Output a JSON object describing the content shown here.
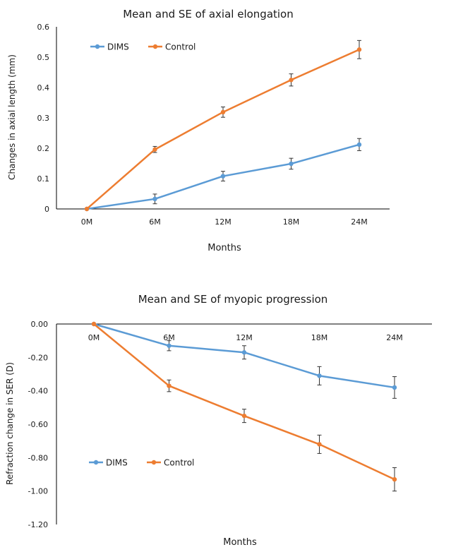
{
  "colors": {
    "dims": "#5B9BD5",
    "control": "#ED7D31",
    "axis": "#000000",
    "text": "#1a1a1a",
    "error": "#333333"
  },
  "chart_data": [
    {
      "type": "line",
      "title": "Mean and SE of axial elongation",
      "xlabel": "Months",
      "ylabel": "Changes in axial length (mm)",
      "categories": [
        "0M",
        "6M",
        "12M",
        "18M",
        "24M"
      ],
      "ylim": [
        0,
        0.6
      ],
      "yticks": [
        0,
        0.1,
        0.2,
        0.3,
        0.4,
        0.5,
        0.6
      ],
      "ytick_labels": [
        "0",
        "0.1",
        "0.2",
        "0.3",
        "0.4",
        "0.5",
        "0.6"
      ],
      "legend_position": "top-left",
      "series": [
        {
          "name": "DIMS",
          "color_key": "dims",
          "values": [
            0,
            0.033,
            0.108,
            0.149,
            0.212
          ],
          "errors": [
            0,
            0.016,
            0.016,
            0.018,
            0.02
          ]
        },
        {
          "name": "Control",
          "color_key": "control",
          "values": [
            0,
            0.196,
            0.319,
            0.425,
            0.525
          ],
          "errors": [
            0,
            0.01,
            0.017,
            0.02,
            0.03
          ]
        }
      ]
    },
    {
      "type": "line",
      "title": "Mean and SE of myopic progression",
      "xlabel": "Months",
      "ylabel": "Refraction change in SER (D)",
      "categories": [
        "0M",
        "6M",
        "12M",
        "18M",
        "24M"
      ],
      "ylim": [
        -1.2,
        0
      ],
      "yticks": [
        0,
        -0.2,
        -0.4,
        -0.6,
        -0.8,
        -1.0,
        -1.2
      ],
      "ytick_labels": [
        "0.00",
        "-0.20",
        "-0.40",
        "-0.60",
        "-0.80",
        "-1.00",
        "-1.20"
      ],
      "legend_position": "lower-left",
      "series": [
        {
          "name": "DIMS",
          "color_key": "dims",
          "values": [
            0,
            -0.13,
            -0.17,
            -0.31,
            -0.38
          ],
          "errors": [
            0,
            0.03,
            0.04,
            0.055,
            0.065
          ]
        },
        {
          "name": "Control",
          "color_key": "control",
          "values": [
            0,
            -0.37,
            -0.55,
            -0.72,
            -0.93
          ],
          "errors": [
            0,
            0.035,
            0.04,
            0.055,
            0.07
          ]
        }
      ]
    }
  ]
}
